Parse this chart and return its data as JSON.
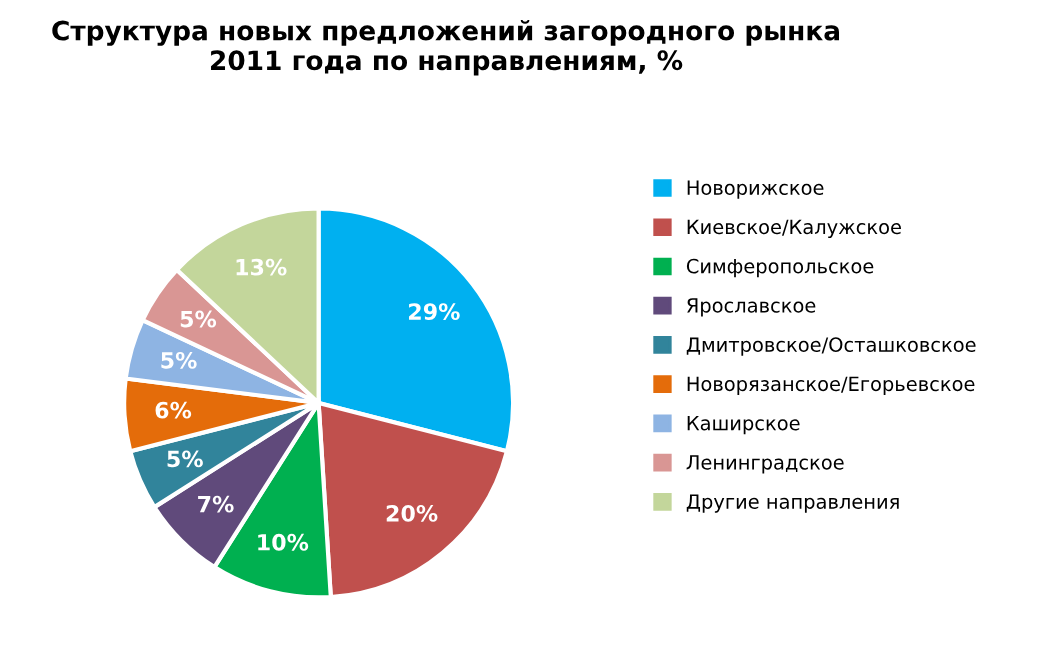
{
  "chart_data": {
    "type": "pie",
    "title": "Структура новых предложений загородного рынка\n2011 года по направлениям, %",
    "categories": [
      "Новорижское",
      "Киевское/Калужское",
      "Симферопольское",
      "Ярославское",
      "Дмитровское/Осташковское",
      "Новорязанское/Егорьевское",
      "Каширское",
      "Ленинградское",
      "Другие направления"
    ],
    "values": [
      29,
      20,
      10,
      7,
      5,
      6,
      5,
      5,
      13
    ],
    "colors": [
      "#00b0f0",
      "#c0504d",
      "#00b050",
      "#604a7b",
      "#31849b",
      "#e46c0a",
      "#8eb4e3",
      "#d99694",
      "#c3d69b"
    ],
    "value_labels": [
      "29%",
      "20%",
      "10%",
      "7%",
      "5%",
      "6%",
      "5%",
      "5%",
      "13%"
    ],
    "legend": "right"
  }
}
